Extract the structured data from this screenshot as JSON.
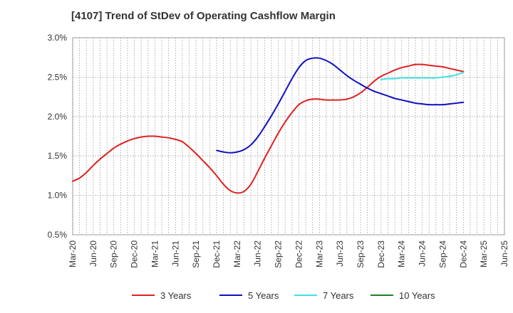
{
  "chart_data": {
    "type": "line",
    "title": "[4107]  Trend of StDev of Operating Cashflow Margin",
    "xlabel": "",
    "ylabel": "",
    "ylim": [
      0.5,
      3.0
    ],
    "y_ticks": [
      "0.5%",
      "1.0%",
      "1.5%",
      "2.0%",
      "2.5%",
      "3.0%"
    ],
    "x_ticks": [
      "Mar-20",
      "Jun-20",
      "Sep-20",
      "Dec-20",
      "Mar-21",
      "Jun-21",
      "Sep-21",
      "Dec-21",
      "Mar-22",
      "Jun-22",
      "Sep-22",
      "Dec-22",
      "Mar-23",
      "Jun-23",
      "Sep-23",
      "Dec-23",
      "Mar-24",
      "Jun-24",
      "Sep-24",
      "Dec-24",
      "Mar-25",
      "Jun-25"
    ],
    "grid": true,
    "legend_position": "bottom",
    "series": [
      {
        "name": "3 Years",
        "color": "#e02020",
        "points": [
          [
            "Mar-20",
            1.18
          ],
          [
            "Apr-20",
            1.22
          ],
          [
            "May-20",
            1.29
          ],
          [
            "Jun-20",
            1.38
          ],
          [
            "Jul-20",
            1.46
          ],
          [
            "Aug-20",
            1.53
          ],
          [
            "Sep-20",
            1.6
          ],
          [
            "Oct-20",
            1.65
          ],
          [
            "Nov-20",
            1.69
          ],
          [
            "Dec-20",
            1.72
          ],
          [
            "Jan-21",
            1.74
          ],
          [
            "Feb-21",
            1.75
          ],
          [
            "Mar-21",
            1.75
          ],
          [
            "Apr-21",
            1.74
          ],
          [
            "May-21",
            1.73
          ],
          [
            "Jun-21",
            1.71
          ],
          [
            "Jul-21",
            1.68
          ],
          [
            "Aug-21",
            1.61
          ],
          [
            "Sep-21",
            1.53
          ],
          [
            "Oct-21",
            1.44
          ],
          [
            "Nov-21",
            1.35
          ],
          [
            "Dec-21",
            1.25
          ],
          [
            "Jan-22",
            1.14
          ],
          [
            "Feb-22",
            1.06
          ],
          [
            "Mar-22",
            1.03
          ],
          [
            "Apr-22",
            1.05
          ],
          [
            "May-22",
            1.14
          ],
          [
            "Jun-22",
            1.3
          ],
          [
            "Jul-22",
            1.47
          ],
          [
            "Aug-22",
            1.63
          ],
          [
            "Sep-22",
            1.79
          ],
          [
            "Oct-22",
            1.93
          ],
          [
            "Nov-22",
            2.05
          ],
          [
            "Dec-22",
            2.15
          ],
          [
            "Jan-23",
            2.2
          ],
          [
            "Feb-23",
            2.22
          ],
          [
            "Mar-23",
            2.22
          ],
          [
            "Apr-23",
            2.21
          ],
          [
            "May-23",
            2.21
          ],
          [
            "Jun-23",
            2.21
          ],
          [
            "Jul-23",
            2.22
          ],
          [
            "Aug-23",
            2.25
          ],
          [
            "Sep-23",
            2.3
          ],
          [
            "Oct-23",
            2.37
          ],
          [
            "Nov-23",
            2.45
          ],
          [
            "Dec-23",
            2.51
          ],
          [
            "Jan-24",
            2.55
          ],
          [
            "Feb-24",
            2.59
          ],
          [
            "Mar-24",
            2.62
          ],
          [
            "Apr-24",
            2.64
          ],
          [
            "May-24",
            2.66
          ],
          [
            "Jun-24",
            2.66
          ],
          [
            "Jul-24",
            2.65
          ],
          [
            "Aug-24",
            2.64
          ],
          [
            "Sep-24",
            2.63
          ],
          [
            "Oct-24",
            2.61
          ],
          [
            "Nov-24",
            2.59
          ],
          [
            "Dec-24",
            2.57
          ]
        ]
      },
      {
        "name": "5 Years",
        "color": "#1010c0",
        "points": [
          [
            "Dec-21",
            1.57
          ],
          [
            "Jan-22",
            1.55
          ],
          [
            "Feb-22",
            1.54
          ],
          [
            "Mar-22",
            1.55
          ],
          [
            "Apr-22",
            1.58
          ],
          [
            "May-22",
            1.64
          ],
          [
            "Jun-22",
            1.74
          ],
          [
            "Jul-22",
            1.87
          ],
          [
            "Aug-22",
            2.01
          ],
          [
            "Sep-22",
            2.16
          ],
          [
            "Oct-22",
            2.32
          ],
          [
            "Nov-22",
            2.48
          ],
          [
            "Dec-22",
            2.62
          ],
          [
            "Jan-23",
            2.71
          ],
          [
            "Feb-23",
            2.74
          ],
          [
            "Mar-23",
            2.74
          ],
          [
            "Apr-23",
            2.71
          ],
          [
            "May-23",
            2.66
          ],
          [
            "Jun-23",
            2.59
          ],
          [
            "Jul-23",
            2.52
          ],
          [
            "Aug-23",
            2.46
          ],
          [
            "Sep-23",
            2.41
          ],
          [
            "Oct-23",
            2.36
          ],
          [
            "Nov-23",
            2.32
          ],
          [
            "Dec-23",
            2.29
          ],
          [
            "Jan-24",
            2.26
          ],
          [
            "Feb-24",
            2.23
          ],
          [
            "Mar-24",
            2.21
          ],
          [
            "Apr-24",
            2.19
          ],
          [
            "May-24",
            2.17
          ],
          [
            "Jun-24",
            2.16
          ],
          [
            "Jul-24",
            2.15
          ],
          [
            "Aug-24",
            2.15
          ],
          [
            "Sep-24",
            2.15
          ],
          [
            "Oct-24",
            2.16
          ],
          [
            "Nov-24",
            2.17
          ],
          [
            "Dec-24",
            2.18
          ]
        ]
      },
      {
        "name": "7 Years",
        "color": "#40e0e0",
        "points": [
          [
            "Dec-23",
            2.47
          ],
          [
            "Jan-24",
            2.48
          ],
          [
            "Feb-24",
            2.48
          ],
          [
            "Mar-24",
            2.49
          ],
          [
            "Apr-24",
            2.49
          ],
          [
            "May-24",
            2.49
          ],
          [
            "Jun-24",
            2.49
          ],
          [
            "Jul-24",
            2.49
          ],
          [
            "Aug-24",
            2.49
          ],
          [
            "Sep-24",
            2.5
          ],
          [
            "Oct-24",
            2.51
          ],
          [
            "Nov-24",
            2.53
          ],
          [
            "Dec-24",
            2.56
          ]
        ]
      },
      {
        "name": "10 Years",
        "color": "#208020",
        "points": []
      }
    ]
  }
}
